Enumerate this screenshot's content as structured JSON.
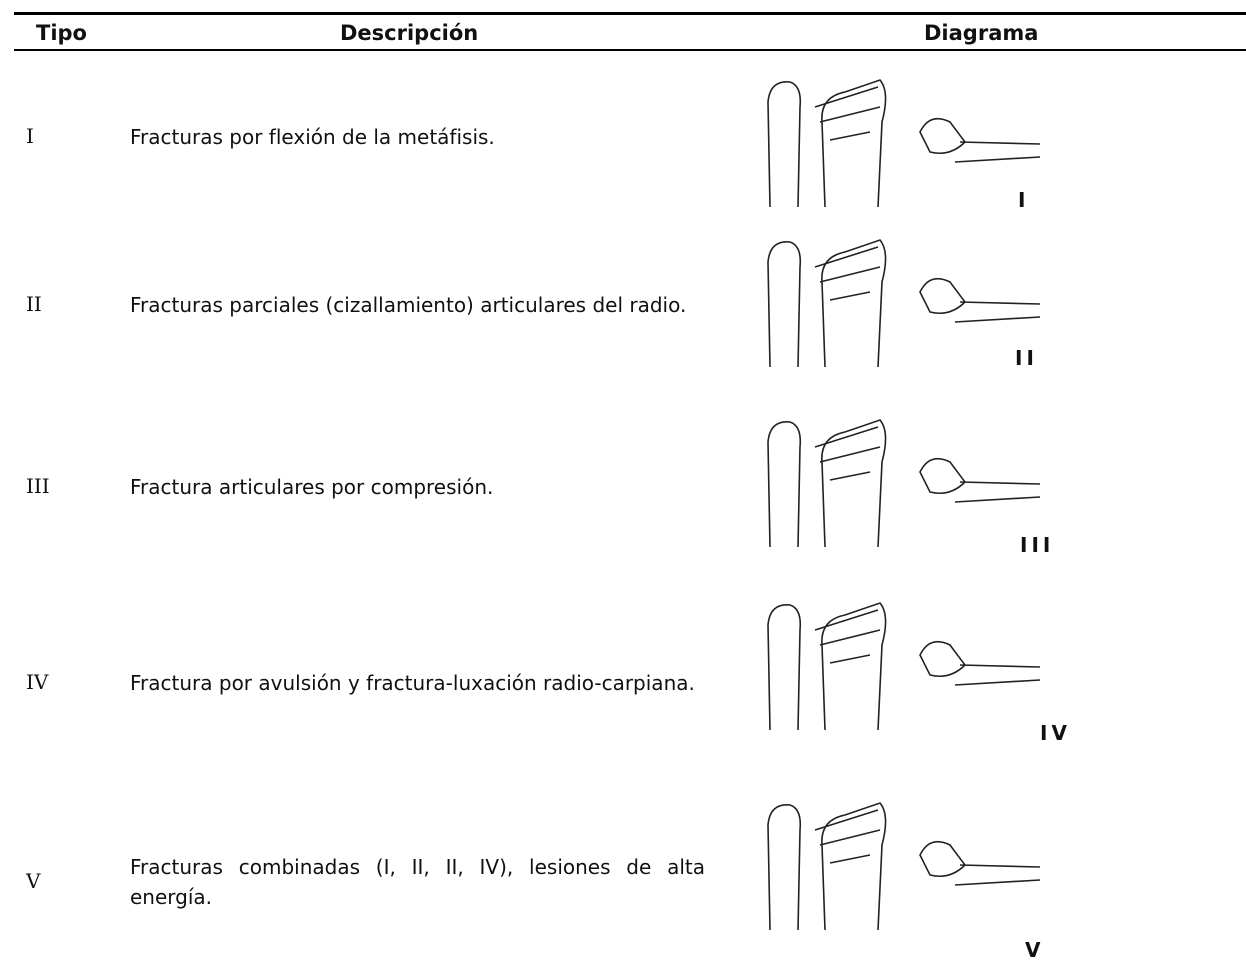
{
  "table": {
    "header": [
      "Tipo",
      "Descripción",
      "Diagrama"
    ],
    "rows": [
      {
        "tipo": "I",
        "descripcion": "Fracturas por flexión de la metáfisis.",
        "diagrama": "I"
      },
      {
        "tipo": "II",
        "descripcion": "Fracturas parciales (cizallamiento) articulares del radio.",
        "diagrama": "II"
      },
      {
        "tipo": "III",
        "descripcion": "Fractura articulares por compresión.",
        "diagrama": "III"
      },
      {
        "tipo": "IV",
        "descripcion": "Fractura por avulsión y fractura-luxación radio-carpiana.",
        "diagrama": "IV"
      },
      {
        "tipo": "V",
        "descripcion": "Fracturas combinadas (I, II, II, IV), lesiones de alta energía.",
        "diagrama": "V"
      }
    ]
  }
}
